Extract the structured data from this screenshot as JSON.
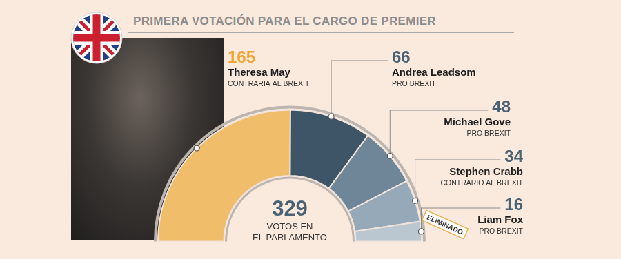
{
  "chart_data": {
    "type": "doughnut",
    "title": "PRIMERA VOTACIÓN PARA EL CARGO DE PREMIER",
    "categories": [
      "Theresa May",
      "Andrea Leadsom",
      "Michael Gove",
      "Stephen Crabb",
      "Liam Fox"
    ],
    "values": [
      165,
      66,
      48,
      34,
      16
    ],
    "colors": [
      "#f0bd6b",
      "#3e5568",
      "#6f8698",
      "#96a9b8",
      "#bac7d1"
    ],
    "positions": [
      "CONTRARIA AL BREXIT",
      "PRO BREXIT",
      "PRO BREXIT",
      "CONTRARIO AL BREXIT",
      "PRO BREXIT"
    ],
    "annotations": [
      {
        "category": "Liam Fox",
        "text": "ELIMINADO"
      }
    ],
    "total": {
      "value": 329,
      "label": [
        "VOTOS EN",
        "EL PARLAMENTO"
      ]
    },
    "data_labels": true
  }
}
